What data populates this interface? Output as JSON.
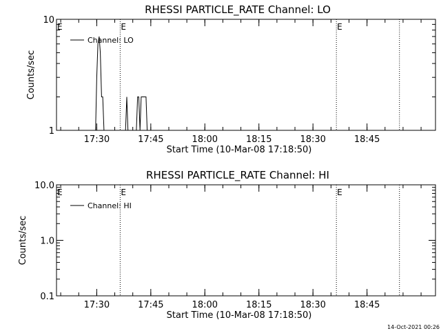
{
  "footer": {
    "timestamp": "14-Oct-2021 00:26"
  },
  "chart_data": [
    {
      "type": "line",
      "title": "RHESSI PARTICLE_RATE Channel: LO",
      "xlabel": "Start Time (10-Mar-08 17:18:50)",
      "ylabel": "Counts/sec",
      "yscale": "log",
      "ylim": [
        1,
        10
      ],
      "yticks": [
        1,
        10
      ],
      "ytick_labels": [
        "1",
        "10"
      ],
      "xlim": [
        "17:18:50",
        "19:04:00"
      ],
      "xtick_labels": [
        "17:30",
        "17:45",
        "18:00",
        "18:15",
        "18:30",
        "18:45"
      ],
      "grid": false,
      "legend": {
        "position": "top-left",
        "entries": [
          "Channel: LO"
        ]
      },
      "markers": [
        {
          "time": "17:36:30",
          "label": "E",
          "style": "dotted"
        },
        {
          "time": "18:36:30",
          "label": "E",
          "style": "dotted"
        },
        {
          "time": "18:54:00",
          "label": "",
          "style": "dotted"
        }
      ],
      "series": [
        {
          "name": "Channel: LO",
          "points": [
            [
              "17:29:20",
              0.1
            ],
            [
              "17:29:40",
              1
            ],
            [
              "17:30:00",
              3
            ],
            [
              "17:30:20",
              6
            ],
            [
              "17:30:40",
              7
            ],
            [
              "17:31:00",
              5
            ],
            [
              "17:31:20",
              2
            ],
            [
              "17:31:40",
              2
            ],
            [
              "17:32:00",
              1
            ],
            [
              "17:32:20",
              0.1
            ],
            [
              "17:37:40",
              0.1
            ],
            [
              "17:38:00",
              1
            ],
            [
              "17:38:20",
              2
            ],
            [
              "17:38:40",
              1
            ],
            [
              "17:39:00",
              0.1
            ],
            [
              "17:40:20",
              0.1
            ],
            [
              "17:40:40",
              1
            ],
            [
              "17:41:00",
              1
            ],
            [
              "17:41:20",
              2
            ],
            [
              "17:41:40",
              2
            ],
            [
              "17:42:00",
              1
            ],
            [
              "17:42:20",
              2
            ],
            [
              "17:42:40",
              2
            ],
            [
              "17:43:00",
              2
            ],
            [
              "17:43:20",
              2
            ],
            [
              "17:43:40",
              2
            ],
            [
              "17:44:00",
              1
            ],
            [
              "17:44:20",
              0.1
            ]
          ]
        }
      ]
    },
    {
      "type": "line",
      "title": "RHESSI PARTICLE_RATE Channel: HI",
      "xlabel": "Start Time (10-Mar-08 17:18:50)",
      "ylabel": "Counts/sec",
      "yscale": "log",
      "ylim": [
        0.1,
        10
      ],
      "yticks": [
        0.1,
        1,
        10
      ],
      "ytick_labels": [
        "0.1",
        "1.0",
        "10.0"
      ],
      "xlim": [
        "17:18:50",
        "19:04:00"
      ],
      "xtick_labels": [
        "17:30",
        "17:45",
        "18:00",
        "18:15",
        "18:30",
        "18:45"
      ],
      "grid": false,
      "legend": {
        "position": "top-left",
        "entries": [
          "Channel: HI"
        ]
      },
      "markers": [
        {
          "time": "17:36:30",
          "label": "E",
          "style": "dotted"
        },
        {
          "time": "18:36:30",
          "label": "E",
          "style": "dotted"
        },
        {
          "time": "18:54:00",
          "label": "",
          "style": "dotted"
        }
      ],
      "series": [
        {
          "name": "Channel: HI",
          "points": []
        }
      ]
    }
  ]
}
